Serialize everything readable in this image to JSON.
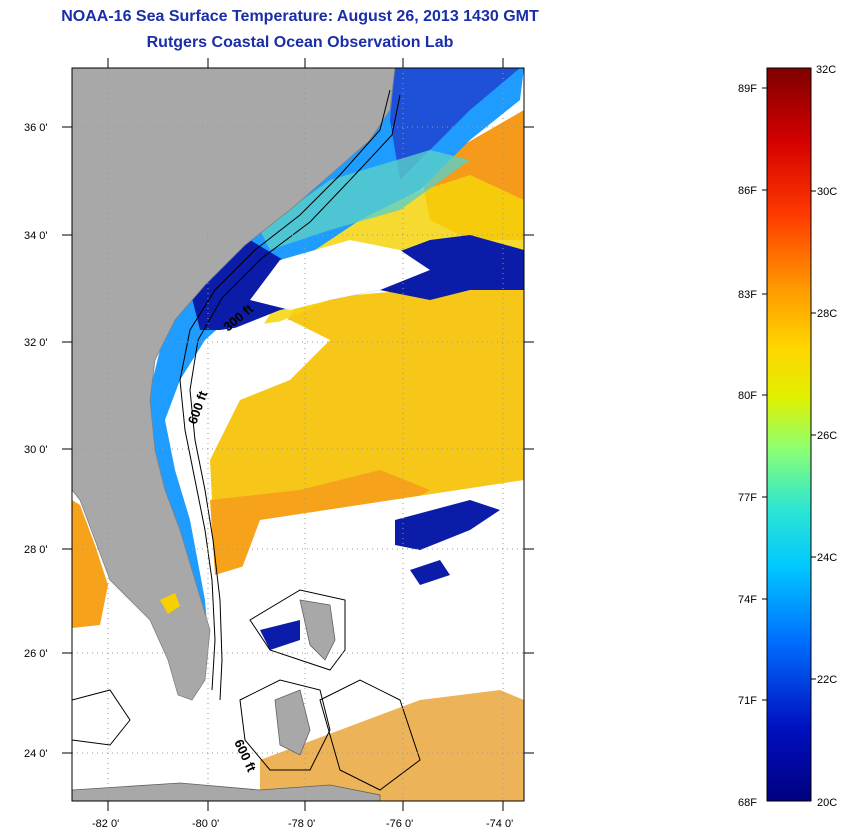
{
  "header": {
    "title": "NOAA-16 Sea Surface Temperature:  August 26, 2013 1430 GMT",
    "subtitle": "Rutgers Coastal Ocean Observation Lab"
  },
  "map": {
    "lat_labels": [
      "36 0'",
      "34 0'",
      "32 0'",
      "30 0'",
      "28 0'",
      "26 0'",
      "24 0'"
    ],
    "lon_labels": [
      "-82 0'",
      "-80 0'",
      "-78 0'",
      "-76 0'",
      "-74 0'"
    ],
    "contour_labels": [
      "300 ft",
      "600 ft",
      "600 ft"
    ]
  },
  "colorbar": {
    "fahrenheit_labels": [
      "89F",
      "86F",
      "83F",
      "80F",
      "77F",
      "74F",
      "71F",
      "68F"
    ],
    "celsius_labels": [
      "32C",
      "30C",
      "28C",
      "26C",
      "24C",
      "22C",
      "20C"
    ],
    "colors": [
      "#7f0000",
      "#d40000",
      "#ff4000",
      "#ff9900",
      "#ffd500",
      "#e0f000",
      "#7fff7f",
      "#2ee6d0",
      "#00c8ff",
      "#0070ff",
      "#0010c0",
      "#00007f"
    ]
  }
}
